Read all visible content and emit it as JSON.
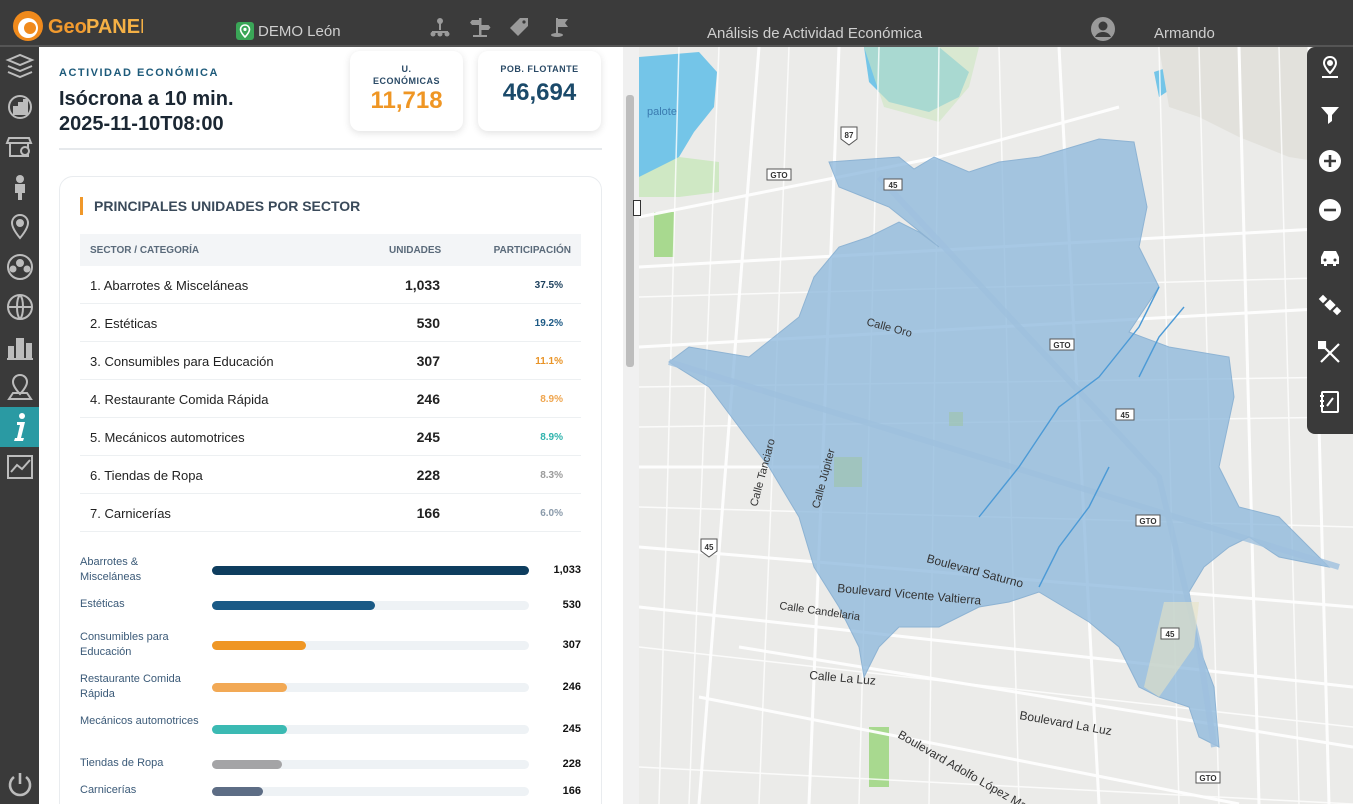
{
  "app": {
    "logo_text": "GeoPANEL",
    "location": "DEMO León",
    "page_title": "Análisis de Actividad Económica",
    "user_name": "Armando"
  },
  "header": {
    "eyebrow": "ACTIVIDAD ECONÓMICA",
    "title_line1": "Isócrona a 10 min.",
    "title_line2": "2025-11-10T08:00"
  },
  "kpis": {
    "units_label_1": "U.",
    "units_label_2": "ECONÓMICAS",
    "units_value": "11,718",
    "pop_label": "POB. FLOTANTE",
    "pop_value": "46,694"
  },
  "table": {
    "title": "PRINCIPALES UNIDADES POR SECTOR",
    "col_sector": "SECTOR / CATEGORÍA",
    "col_units": "UNIDADES",
    "col_share": "PARTICIPACIÓN",
    "rows": [
      {
        "label": "1. Abarrotes & Misceláneas",
        "units": "1,033",
        "share": "37.5%",
        "color": "#1b3f5c"
      },
      {
        "label": "2. Estéticas",
        "units": "530",
        "share": "19.2%",
        "color": "#1d5a85"
      },
      {
        "label": "3. Consumibles para Educación",
        "units": "307",
        "share": "11.1%",
        "color": "#e99427"
      },
      {
        "label": "4. Restaurante Comida Rápida",
        "units": "246",
        "share": "8.9%",
        "color": "#efa54e"
      },
      {
        "label": "5. Mecánicos automotrices",
        "units": "245",
        "share": "8.9%",
        "color": "#2fb3ad"
      },
      {
        "label": "6. Tiendas de Ropa",
        "units": "228",
        "share": "8.3%",
        "color": "#9a9a9a"
      },
      {
        "label": "7. Carnicerías",
        "units": "166",
        "share": "6.0%",
        "color": "#8a9aaa"
      }
    ]
  },
  "chart_data": {
    "type": "bar",
    "categories": [
      "Abarrotes & Misceláneas",
      "Estéticas",
      "Consumibles para Educación",
      "Restaurante Comida Rápida",
      "Mecánicos automotrices",
      "Tiendas de Ropa",
      "Carnicerías"
    ],
    "values": [
      1033,
      530,
      307,
      246,
      245,
      228,
      166
    ],
    "value_labels": [
      "1,033",
      "530",
      "307",
      "246",
      "245",
      "228",
      "166"
    ],
    "colors": [
      "#0e3d5e",
      "#1a5a86",
      "#ef9624",
      "#f2a955",
      "#3bbab3",
      "#a4a4a6",
      "#5d6d85"
    ],
    "xlim": [
      0,
      1033
    ]
  },
  "map": {
    "labels": {
      "calle_oro": "Calle Oro",
      "calle_tanciaro": "Calle Tanciaro",
      "calle_jupiter": "Calle Júpiter",
      "blvd_saturno": "Boulevard Saturno",
      "blvd_valtierra": "Boulevard Vicente Valtierra",
      "calle_candelaria": "Calle Candelaria",
      "calle_la_luz": "Calle La Luz",
      "blvd_la_luz": "Boulevard La Luz",
      "blvd_adolfo": "Boulevard Adolfo López Ma",
      "palote": "palote",
      "gto": "GTO",
      "r45": "45",
      "r87": "87"
    }
  }
}
